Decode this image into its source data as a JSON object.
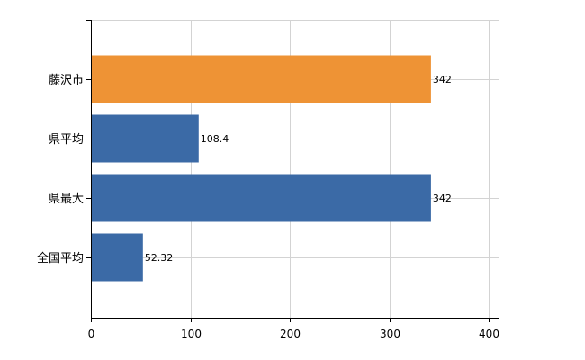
{
  "chart_data": {
    "type": "bar",
    "orientation": "horizontal",
    "title": "",
    "xlabel": "",
    "ylabel": "",
    "xlim": [
      0,
      400
    ],
    "x_ticks": [
      0,
      100,
      200,
      300,
      400
    ],
    "grid": true,
    "legend": "none",
    "categories": [
      "藤沢市",
      "県平均",
      "県最大",
      "全国平均"
    ],
    "values": [
      342,
      108.4,
      342,
      52.32
    ],
    "value_labels": [
      "342",
      "108.4",
      "342",
      "52.32"
    ],
    "colors": [
      "#ee9335",
      "#3b6aa6",
      "#3b6aa6",
      "#3b6aa6"
    ]
  }
}
